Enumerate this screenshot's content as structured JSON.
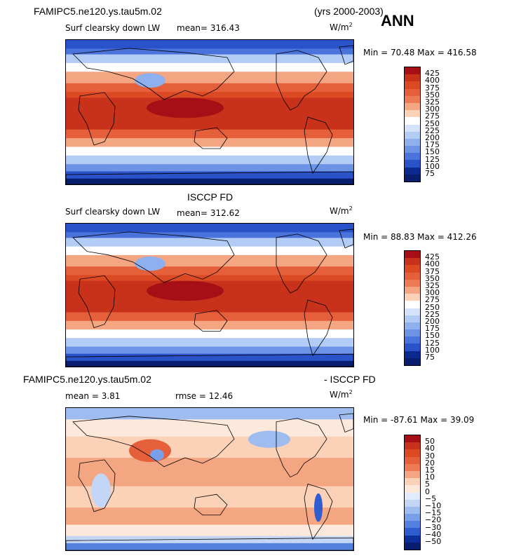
{
  "header": {
    "case": "FAMIPC5.ne120.ys.tau5m.02",
    "years": "(yrs 2000-2003)",
    "season": "ANN"
  },
  "panels": [
    {
      "title": "",
      "variable": "Surf clearsky down LW",
      "stat1": "mean= 316.43",
      "units": "W/m",
      "units_sup": "2",
      "minmax": "Min =  70.48 Max = 416.58"
    },
    {
      "title": "ISCCP FD",
      "variable": "Surf clearsky down LW",
      "stat1": "mean= 312.62",
      "units": "W/m",
      "units_sup": "2",
      "minmax": "Min =  88.83 Max = 412.26"
    },
    {
      "title_left": "FAMIPC5.ne120.ys.tau5m.02",
      "title_right": "- ISCCP FD",
      "stat1": "mean =   3.81",
      "stat2": "rmse =  12.46",
      "units": "W/m",
      "units_sup": "2",
      "minmax": "Min = -87.61 Max =  39.09"
    }
  ],
  "chart_data": [
    {
      "type": "heatmap",
      "title": "Surf clearsky down LW",
      "units": "W/m2",
      "mean": 316.43,
      "min": 70.48,
      "max": 416.58,
      "colorbar_levels": [
        "425",
        "400",
        "375",
        "350",
        "325",
        "300",
        "275",
        "250",
        "225",
        "200",
        "175",
        "150",
        "125",
        "100",
        "75"
      ],
      "colorbar_colors": [
        "#a50f15",
        "#c8321a",
        "#dc4a24",
        "#e5603a",
        "#ec7a52",
        "#f4a582",
        "#fbd2b8",
        "#ffffff",
        "#d4e2fa",
        "#b3ccf5",
        "#8fb0ee",
        "#6d93e6",
        "#4a73db",
        "#2a52c9",
        "#0b2a8f",
        "#081d6e"
      ]
    },
    {
      "type": "heatmap",
      "title": "ISCCP FD",
      "units": "W/m2",
      "mean": 312.62,
      "min": 88.83,
      "max": 412.26,
      "colorbar_levels": [
        "425",
        "400",
        "375",
        "350",
        "325",
        "300",
        "275",
        "250",
        "225",
        "200",
        "175",
        "150",
        "125",
        "100",
        "75"
      ],
      "colorbar_colors": [
        "#a50f15",
        "#c8321a",
        "#dc4a24",
        "#e5603a",
        "#ec7a52",
        "#f4a582",
        "#fbd2b8",
        "#ffffff",
        "#d4e2fa",
        "#b3ccf5",
        "#8fb0ee",
        "#6d93e6",
        "#4a73db",
        "#2a52c9",
        "#0b2a8f",
        "#081d6e"
      ]
    },
    {
      "type": "heatmap",
      "title": "FAMIPC5.ne120.ys.tau5m.02 - ISCCP FD",
      "units": "W/m2",
      "mean": 3.81,
      "rmse": 12.46,
      "min": -87.61,
      "max": 39.09,
      "colorbar_levels": [
        "50",
        "40",
        "30",
        "20",
        "15",
        "10",
        "5",
        "0",
        "−5",
        "−10",
        "−15",
        "−20",
        "−30",
        "−40",
        "−50"
      ],
      "colorbar_colors": [
        "#a50f15",
        "#c8321a",
        "#dc4a24",
        "#e5603a",
        "#ec7a52",
        "#f4a582",
        "#fbd2b8",
        "#fde8dc",
        "#e1ebfb",
        "#c4d6f6",
        "#9fbcf0",
        "#7a9ee8",
        "#5480df",
        "#2f5dd0",
        "#0d2f9b",
        "#081d6e"
      ]
    }
  ]
}
